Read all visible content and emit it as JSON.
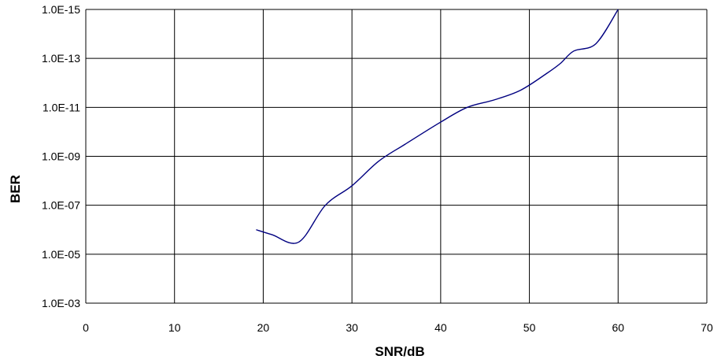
{
  "chart_data": {
    "type": "line",
    "xlabel": "SNR/dB",
    "ylabel": "BER",
    "xlim": [
      0,
      70
    ],
    "ylim": [
      0.001,
      1e-15
    ],
    "y_scale": "log",
    "y_inverted": true,
    "grid": true,
    "x_ticks": [
      "0",
      "10",
      "20",
      "30",
      "40",
      "50",
      "60",
      "70"
    ],
    "y_ticks": [
      "1.0E-15",
      "1.0E-13",
      "1.0E-11",
      "1.0E-09",
      "1.0E-07",
      "1.0E-05",
      "1.0E-03"
    ],
    "line_color": "#000080",
    "series": [
      {
        "x": [
          19.2,
          21,
          24,
          27,
          30,
          33,
          36,
          40,
          43,
          46,
          49,
          52,
          53.5,
          55,
          57.5,
          60
        ],
        "y": [
          1e-06,
          1.6e-06,
          3.2e-06,
          1e-07,
          1.6e-08,
          1.6e-09,
          3.2e-10,
          4e-11,
          1e-11,
          5e-12,
          2e-12,
          4e-13,
          1.6e-13,
          5e-14,
          2.5e-14,
          1e-15
        ]
      }
    ]
  }
}
